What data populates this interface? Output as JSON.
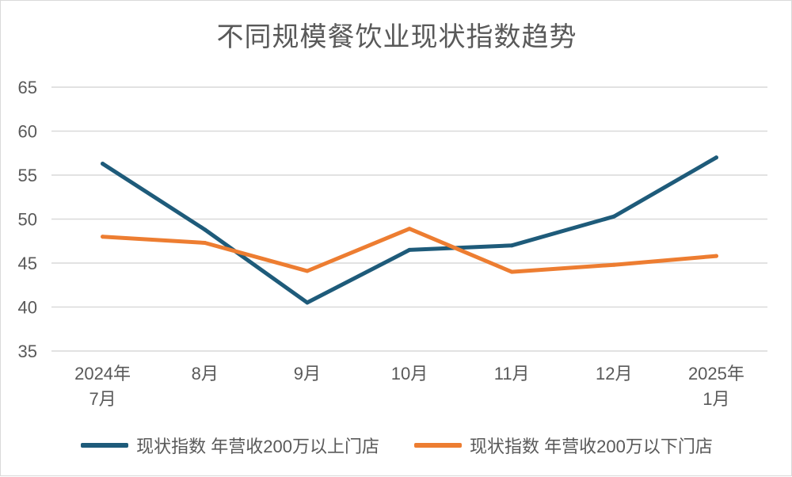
{
  "chart_data": {
    "type": "line",
    "title": "不同规模餐饮业现状指数趋势",
    "xlabel": "",
    "ylabel": "",
    "ylim": [
      35,
      65
    ],
    "yticks": [
      35,
      40,
      45,
      50,
      55,
      60,
      65
    ],
    "categories": [
      [
        "2024年",
        "7月"
      ],
      [
        "8月"
      ],
      [
        "9月"
      ],
      [
        "10月"
      ],
      [
        "11月"
      ],
      [
        "12月"
      ],
      [
        "2025年",
        "1月"
      ]
    ],
    "grid": true,
    "legend_position": "bottom",
    "series": [
      {
        "name": "现状指数 年营收200万以上门店",
        "color": "#1e5b7a",
        "values": [
          56.3,
          48.8,
          40.5,
          46.5,
          47.0,
          50.3,
          57.0
        ]
      },
      {
        "name": "现状指数 年营收200万以下门店",
        "color": "#ed7d31",
        "values": [
          48.0,
          47.3,
          44.1,
          48.9,
          44.0,
          44.8,
          45.8
        ]
      }
    ]
  }
}
